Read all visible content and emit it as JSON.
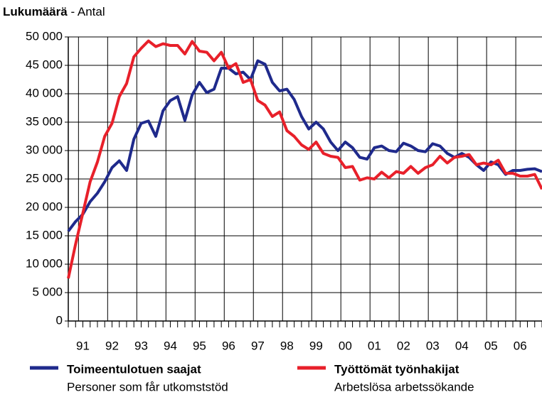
{
  "chart_data": {
    "type": "line",
    "title": "Lukumäärä",
    "subtitle": "- Antal",
    "categories": [
      null,
      null,
      "91",
      null,
      null,
      null,
      "92",
      null,
      null,
      null,
      "93",
      null,
      null,
      null,
      "94",
      null,
      null,
      null,
      "95",
      null,
      null,
      null,
      "96",
      null,
      null,
      null,
      "97",
      null,
      null,
      null,
      "98",
      null,
      null,
      null,
      "99",
      null,
      null,
      null,
      "00",
      null,
      null,
      null,
      "01",
      null,
      null,
      null,
      "02",
      null,
      null,
      null,
      "03",
      null,
      null,
      null,
      "04",
      null,
      null,
      null,
      "05",
      null,
      null,
      null,
      "06",
      null,
      null,
      null
    ],
    "series": [
      {
        "name": "Toimeentulotuen saajat",
        "subname": "Personer som får utkomststöd",
        "color": "#1f2a8c",
        "values": [
          15800,
          17500,
          18800,
          21000,
          22500,
          24500,
          27000,
          28200,
          26500,
          32000,
          34800,
          35200,
          32500,
          37000,
          38800,
          39500,
          35300,
          39800,
          42000,
          40200,
          40800,
          44500,
          44500,
          43500,
          43800,
          42500,
          45800,
          45200,
          42000,
          40500,
          40800,
          39000,
          36000,
          33800,
          35000,
          33800,
          31500,
          30000,
          31500,
          30500,
          28800,
          28500,
          30500,
          30800,
          30000,
          29800,
          31300,
          30800,
          30000,
          29800,
          31200,
          30800,
          29500,
          28800,
          29500,
          28800,
          27500,
          26500,
          28000,
          27500,
          25800,
          26500,
          26500,
          26700,
          26800,
          26300
        ]
      },
      {
        "name": "Työttömät työnhakijat",
        "subname": "Arbetslösa arbetssökande",
        "color": "#e8202a",
        "values": [
          7500,
          13500,
          19000,
          24500,
          28000,
          32500,
          34800,
          39500,
          41800,
          46500,
          48000,
          49300,
          48300,
          48800,
          48500,
          48500,
          47000,
          49200,
          47500,
          47300,
          45800,
          47300,
          44500,
          45300,
          42000,
          42500,
          38800,
          38000,
          36000,
          36800,
          33500,
          32500,
          31000,
          30200,
          31500,
          29500,
          29000,
          28800,
          27000,
          27200,
          24800,
          25200,
          25000,
          26200,
          25200,
          26300,
          26000,
          27200,
          26000,
          27000,
          27500,
          29000,
          27800,
          28800,
          29000,
          29300,
          27500,
          27800,
          27500,
          28300,
          26000,
          26000,
          25500,
          25500,
          25800,
          23200
        ]
      }
    ],
    "ylim": [
      0,
      50000
    ],
    "yticks": [
      0,
      {
        "value": 5000,
        "label": "5 000"
      },
      {
        "value": 10000,
        "label": "10 000"
      },
      {
        "value": 15000,
        "label": "15 000"
      },
      {
        "value": 20000,
        "label": "20 000"
      },
      {
        "value": 25000,
        "label": "25 000"
      },
      {
        "value": 30000,
        "label": "30 000"
      },
      {
        "value": 35000,
        "label": "35 000"
      },
      {
        "value": 40000,
        "label": "40 000"
      },
      {
        "value": 45000,
        "label": "45 000"
      },
      {
        "value": 50000,
        "label": "50 000"
      }
    ],
    "grid": true
  }
}
